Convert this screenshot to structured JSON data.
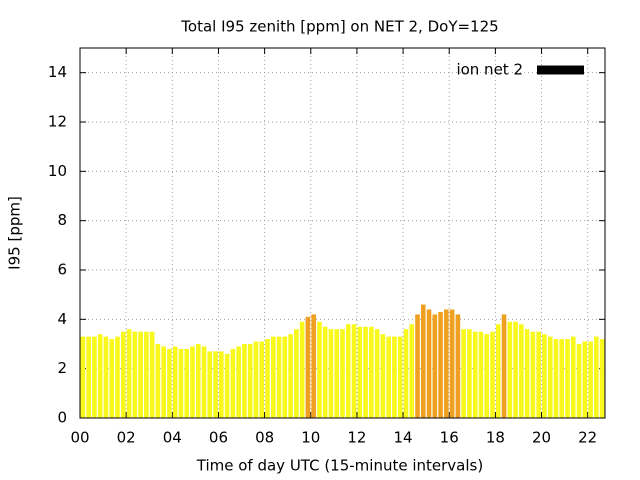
{
  "chart_data": {
    "type": "bar",
    "title": "Total I95 zenith [ppm] on NET 2, DoY=125",
    "x_label": "Time of day UTC (15-minute intervals)",
    "y_label": "I95 [ppm]",
    "series": [
      {
        "name": "ion net 2",
        "legend_color": "#000000",
        "x": [
          0,
          0.25,
          0.5,
          0.75,
          1,
          1.25,
          1.5,
          1.75,
          2,
          2.25,
          2.5,
          2.75,
          3,
          3.25,
          3.5,
          3.75,
          4,
          4.25,
          4.5,
          4.75,
          5,
          5.25,
          5.5,
          5.75,
          6,
          6.25,
          6.5,
          6.75,
          7,
          7.25,
          7.5,
          7.75,
          8,
          8.25,
          8.5,
          8.75,
          9,
          9.25,
          9.5,
          9.75,
          10,
          10.25,
          10.5,
          10.75,
          11,
          11.25,
          11.5,
          11.75,
          12,
          12.25,
          12.5,
          12.75,
          13,
          13.25,
          13.5,
          13.75,
          14,
          14.25,
          14.5,
          14.75,
          15,
          15.25,
          15.5,
          15.75,
          16,
          16.25,
          16.5,
          16.75,
          17,
          17.25,
          17.5,
          17.75,
          18,
          18.25,
          18.5,
          18.75,
          19,
          19.25,
          19.5,
          19.75,
          20,
          20.25,
          20.5,
          20.75,
          21,
          21.25,
          21.5,
          21.75,
          22,
          22.25,
          22.5
        ],
        "values": [
          3.3,
          3.3,
          3.3,
          3.4,
          3.3,
          3.2,
          3.3,
          3.5,
          3.6,
          3.5,
          3.5,
          3.5,
          3.5,
          3.0,
          2.9,
          2.8,
          2.9,
          2.8,
          2.8,
          2.9,
          3.0,
          2.9,
          2.7,
          2.7,
          2.7,
          2.6,
          2.8,
          2.9,
          3.0,
          3.0,
          3.1,
          3.1,
          3.2,
          3.3,
          3.3,
          3.3,
          3.4,
          3.6,
          3.9,
          4.1,
          4.2,
          3.9,
          3.7,
          3.6,
          3.6,
          3.6,
          3.8,
          3.8,
          3.7,
          3.7,
          3.7,
          3.6,
          3.4,
          3.3,
          3.3,
          3.3,
          3.6,
          3.8,
          4.2,
          4.6,
          4.4,
          4.2,
          4.3,
          4.4,
          4.4,
          4.2,
          3.6,
          3.6,
          3.5,
          3.5,
          3.4,
          3.5,
          3.8,
          4.2,
          3.9,
          3.9,
          3.8,
          3.6,
          3.5,
          3.5,
          3.4,
          3.3,
          3.2,
          3.2,
          3.2,
          3.3,
          3.0,
          3.1,
          3.1,
          3.3,
          3.2
        ],
        "colors": [
          "#f8f81c",
          "#f8f81c",
          "#f8f81c",
          "#f8f81c",
          "#f8f81c",
          "#f8f81c",
          "#f8f81c",
          "#f8f81c",
          "#f8f81c",
          "#f8f81c",
          "#f8f81c",
          "#f8f81c",
          "#f8f81c",
          "#f8f81c",
          "#f8f81c",
          "#f8f81c",
          "#f8f81c",
          "#f8f81c",
          "#f8f81c",
          "#f8f81c",
          "#f8f81c",
          "#f8f81c",
          "#f8f81c",
          "#f8f81c",
          "#f8f81c",
          "#f8f81c",
          "#f8f81c",
          "#f8f81c",
          "#f8f81c",
          "#f8f81c",
          "#f8f81c",
          "#f8f81c",
          "#f8f81c",
          "#f8f81c",
          "#f8f81c",
          "#f8f81c",
          "#f8f81c",
          "#f8f81c",
          "#f8f81c",
          "#f0a020",
          "#f0a020",
          "#f8f81c",
          "#f8f81c",
          "#f8f81c",
          "#f8f81c",
          "#f8f81c",
          "#f8f81c",
          "#f8f81c",
          "#f8f81c",
          "#f8f81c",
          "#f8f81c",
          "#f8f81c",
          "#f8f81c",
          "#f8f81c",
          "#f8f81c",
          "#f8f81c",
          "#f8f81c",
          "#f8f81c",
          "#f0a020",
          "#f0a020",
          "#f0a020",
          "#f0a020",
          "#f0a020",
          "#f0a020",
          "#f0a020",
          "#f0a020",
          "#f8f81c",
          "#f8f81c",
          "#f8f81c",
          "#f8f81c",
          "#f8f81c",
          "#f8f81c",
          "#f8f81c",
          "#f0a020",
          "#f8f81c",
          "#f8f81c",
          "#f8f81c",
          "#f8f81c",
          "#f8f81c",
          "#f8f81c",
          "#f8f81c",
          "#f8f81c",
          "#f8f81c",
          "#f8f81c",
          "#f8f81c",
          "#f8f81c",
          "#f8f81c",
          "#f8f81c",
          "#f8f81c",
          "#f8f81c",
          "#f8f81c"
        ]
      }
    ],
    "bar_width": 0.25,
    "xlim": [
      0,
      22.75
    ],
    "xticks": [
      {
        "value": 0,
        "label": "00"
      },
      {
        "value": 2,
        "label": "02"
      },
      {
        "value": 4,
        "label": "04"
      },
      {
        "value": 6,
        "label": "06"
      },
      {
        "value": 8,
        "label": "08"
      },
      10,
      12,
      14,
      16,
      18,
      20,
      22
    ],
    "ylim": [
      0,
      15
    ],
    "yticks": [
      0,
      2,
      4,
      6,
      8,
      10,
      12,
      14
    ],
    "grid": true,
    "legend": "top-right"
  }
}
